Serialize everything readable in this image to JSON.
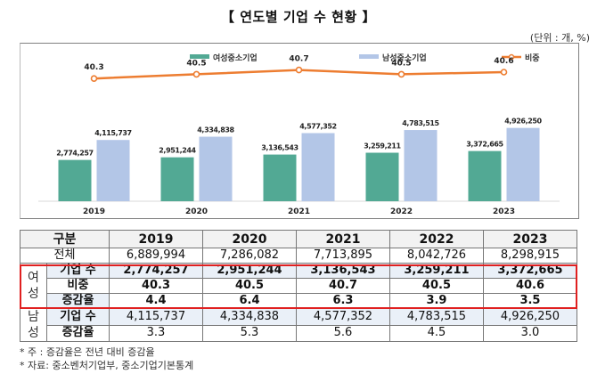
{
  "title": "【 연도별 기업 수 현황 】",
  "unit": "(단위 : 개, %)",
  "colors": {
    "female": "#52a994",
    "male": "#b3c6e7",
    "ratio": "#ed7d31"
  },
  "chart_data": {
    "type": "bar",
    "categories": [
      "2019",
      "2020",
      "2021",
      "2022",
      "2023"
    ],
    "series": [
      {
        "name": "여성중소기업",
        "type": "bar",
        "values": [
          2774257,
          2951244,
          3136543,
          3259211,
          3372665
        ],
        "labels": [
          "2,774,257",
          "2,951,244",
          "3,136,543",
          "3,259,211",
          "3,372,665"
        ]
      },
      {
        "name": "남성중소기업",
        "type": "bar",
        "values": [
          4115737,
          4334838,
          4577352,
          4783515,
          4926250
        ],
        "labels": [
          "4,115,737",
          "4,334,838",
          "4,577,352",
          "4,783,515",
          "4,926,250"
        ]
      },
      {
        "name": "비중",
        "type": "line",
        "values": [
          40.3,
          40.5,
          40.7,
          40.5,
          40.6
        ],
        "labels": [
          "40.3",
          "40.5",
          "40.7",
          "40.5",
          "40.6"
        ]
      }
    ],
    "legend": [
      "여성중소기업",
      "남성중소기업",
      "비중"
    ],
    "legend_position": "top",
    "ylim_bars": [
      0,
      7000000
    ],
    "ylim_line": [
      38.6,
      41.1
    ],
    "grid": false
  },
  "table": {
    "header": [
      "구분",
      "2019",
      "2020",
      "2021",
      "2022",
      "2023"
    ],
    "total": {
      "label": "전체",
      "values": [
        "6,889,994",
        "7,286,082",
        "7,713,895",
        "8,042,726",
        "8,298,915"
      ]
    },
    "female": {
      "group": "여성",
      "rows": [
        {
          "label": "기업 수",
          "values": [
            "2,774,257",
            "2,951,244",
            "3,136,543",
            "3,259,211",
            "3,372,665"
          ]
        },
        {
          "label": "비중",
          "values": [
            "40.3",
            "40.5",
            "40.7",
            "40.5",
            "40.6"
          ]
        },
        {
          "label": "증감율",
          "values": [
            "4.4",
            "6.4",
            "6.3",
            "3.9",
            "3.5"
          ]
        }
      ]
    },
    "male": {
      "group": "남성",
      "rows": [
        {
          "label": "기업 수",
          "values": [
            "4,115,737",
            "4,334,838",
            "4,577,352",
            "4,783,515",
            "4,926,250"
          ]
        },
        {
          "label": "증감율",
          "values": [
            "3.3",
            "5.3",
            "5.6",
            "4.5",
            "3.0"
          ]
        }
      ]
    }
  },
  "notes": [
    "* 주 : 증감율은 전년 대비 증감율",
    "* 자료: 중소벤처기업부, 중소기업기본통계"
  ]
}
